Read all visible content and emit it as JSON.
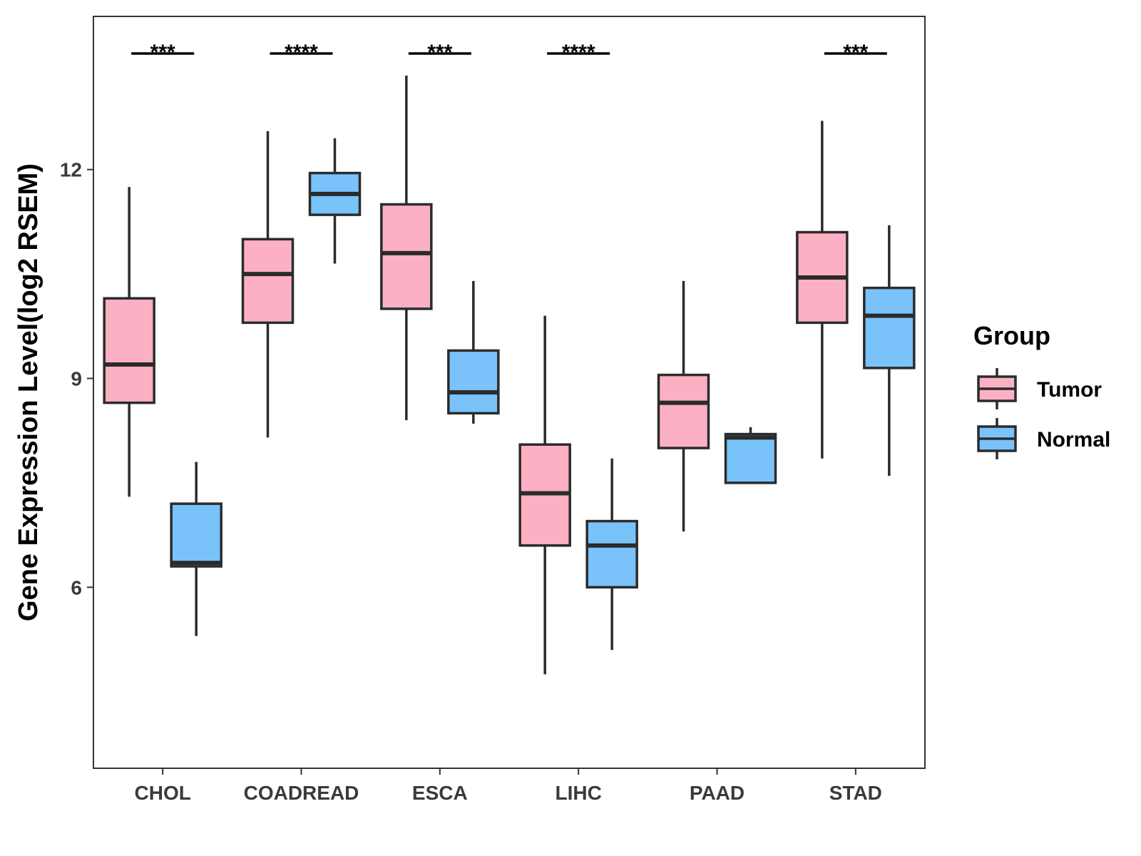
{
  "chart_data": {
    "type": "boxplot",
    "title": "",
    "xlabel": "",
    "ylabel": "Gene Expression Level(log2 RSEM)",
    "ylim": [
      3.4,
      14.2
    ],
    "yticks": [
      6,
      9,
      12
    ],
    "categories": [
      "CHOL",
      "COADREAD",
      "ESCA",
      "LIHC",
      "PAAD",
      "STAD"
    ],
    "grid": false,
    "legend": {
      "title": "Group",
      "position": "right"
    },
    "series": [
      {
        "name": "Tumor",
        "color": "#FBB1C3",
        "boxes": [
          {
            "whisker_low": 7.3,
            "q1": 8.65,
            "median": 9.2,
            "q3": 10.15,
            "whisker_high": 11.75
          },
          {
            "whisker_low": 8.15,
            "q1": 9.8,
            "median": 10.5,
            "q3": 11.0,
            "whisker_high": 12.55
          },
          {
            "whisker_low": 8.4,
            "q1": 10.0,
            "median": 10.8,
            "q3": 11.5,
            "whisker_high": 13.35
          },
          {
            "whisker_low": 4.75,
            "q1": 6.6,
            "median": 7.35,
            "q3": 8.05,
            "whisker_high": 9.9
          },
          {
            "whisker_low": 6.8,
            "q1": 8.0,
            "median": 8.65,
            "q3": 9.05,
            "whisker_high": 10.4
          },
          {
            "whisker_low": 7.85,
            "q1": 9.8,
            "median": 10.45,
            "q3": 11.1,
            "whisker_high": 12.7
          }
        ]
      },
      {
        "name": "Normal",
        "color": "#79C3FA",
        "boxes": [
          {
            "whisker_low": 5.3,
            "q1": 6.3,
            "median": 6.35,
            "q3": 7.2,
            "whisker_high": 7.8
          },
          {
            "whisker_low": 10.65,
            "q1": 11.35,
            "median": 11.65,
            "q3": 11.95,
            "whisker_high": 12.45
          },
          {
            "whisker_low": 8.35,
            "q1": 8.5,
            "median": 8.8,
            "q3": 9.4,
            "whisker_high": 10.4
          },
          {
            "whisker_low": 5.1,
            "q1": 6.0,
            "median": 6.6,
            "q3": 6.95,
            "whisker_high": 7.85
          },
          {
            "whisker_low": 7.5,
            "q1": 7.5,
            "median": 8.15,
            "q3": 8.2,
            "whisker_high": 8.3
          },
          {
            "whisker_low": 7.6,
            "q1": 9.15,
            "median": 9.9,
            "q3": 10.3,
            "whisker_high": 11.2
          }
        ]
      }
    ],
    "annotations": [
      {
        "category": "CHOL",
        "label": "***"
      },
      {
        "category": "COADREAD",
        "label": "****"
      },
      {
        "category": "ESCA",
        "label": "***"
      },
      {
        "category": "LIHC",
        "label": "****"
      },
      {
        "category": "STAD",
        "label": "***"
      }
    ]
  }
}
